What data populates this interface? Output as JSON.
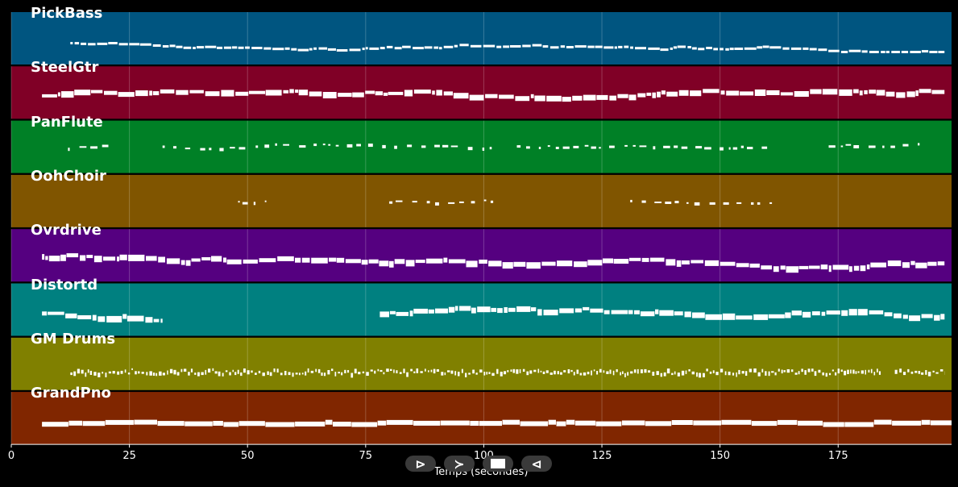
{
  "chart_data": {
    "type": "piano-roll",
    "xlabel": "Temps (secondes)",
    "xlim": [
      0,
      199
    ],
    "xticks": [
      "0",
      "25",
      "50",
      "75",
      "100",
      "125",
      "150",
      "175"
    ],
    "grid": true,
    "tracks": [
      {
        "name": "PickBass",
        "color": "#005580",
        "style": "bass",
        "segments": [
          [
            12.5,
            197.5
          ]
        ]
      },
      {
        "name": "SteelGtr",
        "color": "#800026",
        "style": "dense",
        "segments": [
          [
            6.5,
            197.5
          ]
        ]
      },
      {
        "name": "PanFlute",
        "color": "#008026",
        "style": "sparse",
        "segments": [
          [
            12,
            22
          ],
          [
            32,
            102
          ],
          [
            107,
            160
          ],
          [
            173,
            194
          ]
        ]
      },
      {
        "name": "OohChoir",
        "color": "#805500",
        "style": "sparse",
        "segments": [
          [
            48,
            54
          ],
          [
            80,
            102
          ],
          [
            131,
            161
          ]
        ]
      },
      {
        "name": "Ovrdrive",
        "color": "#550080",
        "style": "dense",
        "segments": [
          [
            6.5,
            197.5
          ]
        ]
      },
      {
        "name": "Distortd",
        "color": "#008080",
        "style": "dense",
        "segments": [
          [
            6.5,
            32
          ],
          [
            78,
            197.5
          ]
        ]
      },
      {
        "name": "GM Drums",
        "color": "#808000",
        "style": "drums",
        "segments": [
          [
            12.5,
            184
          ],
          [
            187,
            197.5
          ]
        ]
      },
      {
        "name": "GrandPno",
        "color": "#802600",
        "style": "block",
        "segments": [
          [
            6.5,
            199
          ]
        ]
      }
    ]
  },
  "controls": {
    "play": "⊳",
    "forward": "≻",
    "stop": "",
    "back": "⊲"
  }
}
